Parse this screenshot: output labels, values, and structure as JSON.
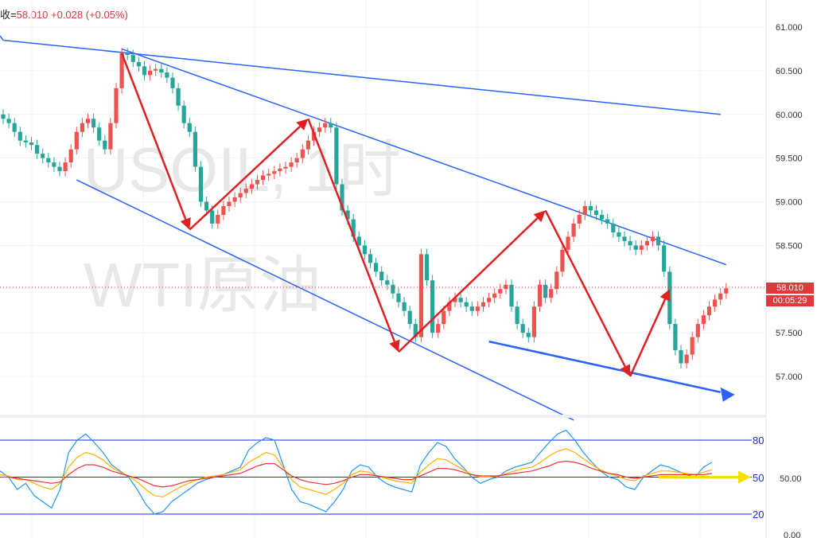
{
  "header": {
    "prefix": "收=",
    "close": "58.010",
    "change": "+0.028",
    "change_pct": "(+0.05%)"
  },
  "watermark": {
    "line1": "USOIL, 1时",
    "line2": "WTI原油"
  },
  "price_axis": {
    "ticks": [
      "61.000",
      "60.500",
      "60.000",
      "59.500",
      "59.000",
      "58.500",
      "58.000",
      "57.500",
      "57.000"
    ],
    "ymin": 56.6,
    "ymax": 61.3
  },
  "last_price": {
    "value": "58.010",
    "countdown": "00:05:29"
  },
  "oscillator": {
    "levels": [
      "80",
      "50",
      "20"
    ],
    "axis_ticks": [
      "50.00",
      "0.00"
    ]
  },
  "chart_data": {
    "type": "line",
    "title": "USOIL, 1时",
    "subtitle": "WTI原油",
    "ylim": [
      56.6,
      61.3
    ],
    "close": [
      59.95,
      59.9,
      59.8,
      59.7,
      59.68,
      59.65,
      59.55,
      59.5,
      59.45,
      59.4,
      59.35,
      59.45,
      59.6,
      59.8,
      59.9,
      59.95,
      59.85,
      59.7,
      59.6,
      59.9,
      60.3,
      60.7,
      60.68,
      60.6,
      60.55,
      60.45,
      60.5,
      60.52,
      60.48,
      60.42,
      60.3,
      60.1,
      59.9,
      59.8,
      59.4,
      59.0,
      58.9,
      58.75,
      58.85,
      58.95,
      59.0,
      59.05,
      59.1,
      59.15,
      59.2,
      59.25,
      59.3,
      59.32,
      59.35,
      59.38,
      59.4,
      59.45,
      59.5,
      59.6,
      59.7,
      59.8,
      59.85,
      59.9,
      59.85,
      59.2,
      58.9,
      58.8,
      58.6,
      58.5,
      58.4,
      58.3,
      58.2,
      58.1,
      58.05,
      57.95,
      57.85,
      57.75,
      57.6,
      57.45,
      58.4,
      58.1,
      57.5,
      57.6,
      57.75,
      57.85,
      57.9,
      57.85,
      57.8,
      57.75,
      57.8,
      57.85,
      57.9,
      57.95,
      58.0,
      58.05,
      57.8,
      57.6,
      57.5,
      57.45,
      57.8,
      58.05,
      57.9,
      58.0,
      58.2,
      58.45,
      58.6,
      58.75,
      58.85,
      58.95,
      58.9,
      58.85,
      58.8,
      58.75,
      58.65,
      58.6,
      58.55,
      58.5,
      58.45,
      58.5,
      58.55,
      58.6,
      58.5,
      58.2,
      57.6,
      57.3,
      57.15,
      57.25,
      57.45,
      57.6,
      57.7,
      57.8,
      57.88,
      57.95,
      58.01
    ],
    "channel_lines": [
      {
        "name": "upper-outer",
        "x": [
          0,
          127
        ],
        "y": [
          60.85,
          60.0
        ]
      },
      {
        "name": "upper-inner",
        "x": [
          21,
          128
        ],
        "y": [
          60.75,
          58.28
        ]
      },
      {
        "name": "lower",
        "x": [
          13,
          101
        ],
        "y": [
          59.25,
          56.5
        ]
      },
      {
        "name": "support",
        "x": [
          86,
          127
        ],
        "y": [
          57.4,
          56.82
        ]
      }
    ],
    "zigzag_arrows": [
      {
        "x": [
          21,
          33
        ],
        "y": [
          60.7,
          58.68
        ]
      },
      {
        "x": [
          33,
          54
        ],
        "y": [
          58.68,
          59.95
        ]
      },
      {
        "x": [
          54,
          70
        ],
        "y": [
          59.95,
          57.28
        ]
      },
      {
        "x": [
          70,
          96
        ],
        "y": [
          57.28,
          58.9
        ]
      },
      {
        "x": [
          96,
          111
        ],
        "y": [
          58.9,
          57.0
        ]
      },
      {
        "x": [
          111,
          118
        ],
        "y": [
          57.0,
          58.0
        ]
      }
    ],
    "oscillator_series": [
      {
        "values": [
          55,
          50,
          40,
          45,
          35,
          30,
          25,
          40,
          70,
          80,
          85,
          78,
          70,
          60,
          55,
          50,
          40,
          28,
          20,
          22,
          30,
          35,
          40,
          45,
          48,
          50,
          52,
          55,
          58,
          72,
          78,
          82,
          80,
          60,
          40,
          30,
          28,
          25,
          22,
          30,
          40,
          55,
          60,
          58,
          50,
          45,
          42,
          40,
          38,
          60,
          70,
          78,
          75,
          65,
          58,
          50,
          45,
          48,
          50,
          55,
          58,
          60,
          62,
          70,
          78,
          85,
          88,
          80,
          70,
          62,
          55,
          50,
          48,
          42,
          40,
          50,
          55,
          60,
          58,
          55,
          52,
          50,
          58,
          62
        ]
      },
      {
        "values": [
          52,
          51,
          48,
          48,
          45,
          42,
          40,
          45,
          58,
          66,
          70,
          68,
          64,
          58,
          54,
          51,
          46,
          40,
          35,
          34,
          38,
          42,
          45,
          48,
          50,
          51,
          52,
          54,
          56,
          62,
          66,
          70,
          68,
          58,
          48,
          42,
          40,
          38,
          36,
          40,
          45,
          52,
          55,
          54,
          51,
          49,
          47,
          46,
          45,
          54,
          60,
          65,
          64,
          60,
          56,
          52,
          50,
          50,
          51,
          53,
          55,
          57,
          58,
          62,
          67,
          71,
          73,
          70,
          65,
          60,
          56,
          53,
          51,
          48,
          47,
          51,
          53,
          55,
          55,
          54,
          53,
          52,
          54,
          56
        ]
      },
      {
        "values": [
          50,
          50,
          49,
          48,
          47,
          46,
          45,
          46,
          52,
          57,
          60,
          60,
          58,
          55,
          53,
          51,
          49,
          46,
          43,
          42,
          43,
          45,
          47,
          48,
          49,
          50,
          51,
          52,
          53,
          56,
          59,
          61,
          61,
          56,
          51,
          48,
          46,
          45,
          44,
          45,
          47,
          50,
          52,
          52,
          51,
          50,
          49,
          48,
          48,
          51,
          54,
          57,
          57,
          56,
          54,
          52,
          51,
          51,
          51,
          52,
          53,
          54,
          55,
          57,
          59,
          62,
          63,
          62,
          60,
          57,
          55,
          53,
          52,
          50,
          49,
          50,
          51,
          52,
          52,
          52,
          52,
          52,
          52,
          53
        ]
      }
    ]
  },
  "colors": {
    "bull": "#26a69a",
    "bear": "#ef5350",
    "trend": "#2962ff",
    "arrow": "#e02020",
    "osc_blue": "#2196f3",
    "osc_orange": "#ffb000",
    "osc_red": "#e53935",
    "yellow": "#f5e000"
  }
}
